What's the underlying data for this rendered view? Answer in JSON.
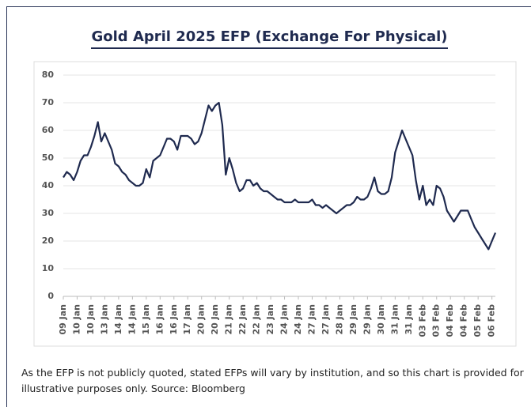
{
  "chart_data": {
    "type": "line",
    "title": "Gold April 2025 EFP (Exchange For Physical)",
    "footnote": "As the EFP is not publicly quoted, stated EFPs will vary by institution, and so this chart is provided for illustrative purposes only. Source: Bloomberg",
    "categories": [
      "09 Jan",
      null,
      null,
      null,
      "10 Jan",
      null,
      null,
      null,
      "10 Jan",
      null,
      null,
      null,
      "13 Jan",
      null,
      null,
      null,
      "14 Jan",
      null,
      null,
      null,
      "14 Jan",
      null,
      null,
      null,
      "15 Jan",
      null,
      null,
      null,
      "16 Jan",
      null,
      null,
      null,
      "16 Jan",
      null,
      null,
      null,
      "17 Jan",
      null,
      null,
      null,
      "20 Jan",
      null,
      null,
      null,
      "20 Jan",
      null,
      null,
      null,
      "21 Jan",
      null,
      null,
      null,
      "22 Jan",
      null,
      null,
      null,
      "22 Jan",
      null,
      null,
      null,
      "23 Jan",
      null,
      null,
      null,
      "24 Jan",
      null,
      null,
      null,
      "24 Jan",
      null,
      null,
      null,
      "27 Jan",
      null,
      null,
      null,
      "27 Jan",
      null,
      null,
      null,
      "28 Jan",
      null,
      null,
      null,
      "29 Jan",
      null,
      null,
      null,
      "29 Jan",
      null,
      null,
      null,
      "30 Jan",
      null,
      null,
      null,
      "31 Jan",
      null,
      null,
      null,
      "31 Jan",
      null,
      null,
      null,
      "03 Feb",
      null,
      null,
      null,
      "03 Feb",
      null,
      null,
      null,
      "04 Feb",
      null,
      null,
      null,
      "04 Feb",
      null,
      null,
      null,
      "05 Feb",
      null,
      null,
      null,
      "06 Feb",
      null
    ],
    "series": [
      {
        "name": "EFP",
        "color": "#1f2a4f",
        "values": [
          43,
          45,
          44,
          42,
          45,
          49,
          51,
          51,
          54,
          58,
          63,
          56,
          59,
          56,
          53,
          48,
          47,
          45,
          44,
          42,
          41,
          40,
          40,
          41,
          46,
          43,
          49,
          50,
          51,
          54,
          57,
          57,
          56,
          53,
          58,
          58,
          58,
          57,
          55,
          56,
          59,
          64,
          69,
          67,
          69,
          70,
          62,
          44,
          50,
          46,
          41,
          38,
          39,
          42,
          42,
          40,
          41,
          39,
          38,
          38,
          37,
          36,
          35,
          35,
          34,
          34,
          34,
          35,
          34,
          34,
          34,
          34,
          35,
          33,
          33,
          32,
          33,
          32,
          31,
          30,
          31,
          32,
          33,
          33,
          34,
          36,
          35,
          35,
          36,
          39,
          43,
          38,
          37,
          37,
          38,
          43,
          52,
          56,
          60,
          57,
          54,
          51,
          42,
          35,
          40,
          33,
          35,
          33,
          40,
          39,
          36,
          31,
          29,
          27,
          29,
          31,
          31,
          31,
          28,
          25,
          23,
          21,
          19,
          17,
          20,
          23
        ]
      }
    ],
    "ylim": [
      0,
      80
    ],
    "yticks": [
      0,
      10,
      20,
      30,
      40,
      50,
      60,
      70,
      80
    ],
    "grid": true
  }
}
